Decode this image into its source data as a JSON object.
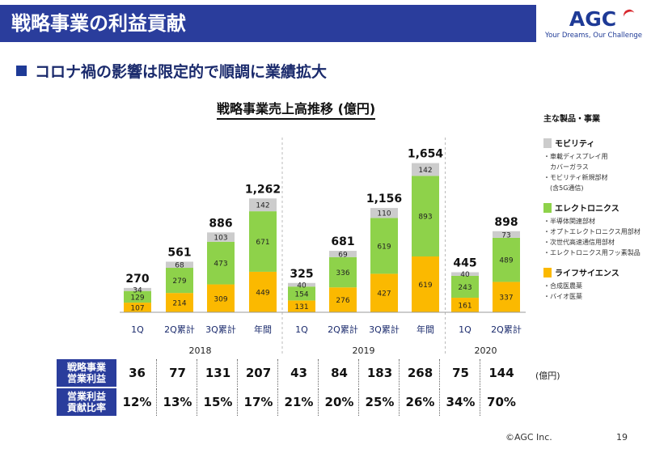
{
  "header": {
    "title": "戦略事業の利益貢献",
    "logo_text": "AGC",
    "logo_tagline": "Your Dreams, Our Challenge"
  },
  "subtitle": "コロナ禍の影響は限定的で順調に業績拡大",
  "chart_data": {
    "type": "bar",
    "stacked": true,
    "title": "戦略事業売上高推移 (億円)",
    "categories": [
      "1Q",
      "2Q累計",
      "3Q累計",
      "年間",
      "1Q",
      "2Q累計",
      "3Q累計",
      "年間",
      "1Q",
      "2Q累計"
    ],
    "year_groups": [
      {
        "label": "2018",
        "start": 0,
        "end": 3
      },
      {
        "label": "2019",
        "start": 4,
        "end": 7
      },
      {
        "label": "2020",
        "start": 8,
        "end": 9
      }
    ],
    "series": [
      {
        "name": "ライフサイエンス",
        "color": "#fbb900",
        "values": [
          107,
          214,
          309,
          449,
          131,
          276,
          427,
          619,
          161,
          337
        ]
      },
      {
        "name": "エレクトロニクス",
        "color": "#8ed24a",
        "values": [
          129,
          279,
          473,
          671,
          154,
          336,
          619,
          893,
          243,
          489
        ]
      },
      {
        "name": "モビリティ",
        "color": "#cccccc",
        "values": [
          34,
          68,
          103,
          142,
          40,
          69,
          110,
          142,
          40,
          73
        ]
      }
    ],
    "totals": [
      "270",
      "561",
      "886",
      "1,262",
      "325",
      "681",
      "1,156",
      "1,654",
      "445",
      "898"
    ],
    "ylim": [
      0,
      1800
    ]
  },
  "legend": {
    "heading": "主な製品・事業",
    "groups": [
      {
        "title": "モビリティ",
        "color": "#cccccc",
        "items": [
          "・車載ディスプレイ用",
          "　カバーガラス",
          "・モビリティ新規部材",
          "　(含5G通信)"
        ]
      },
      {
        "title": "エレクトロニクス",
        "color": "#8ed24a",
        "items": [
          "・半導体関連部材",
          "・オプトエレクトロニクス用部材",
          "・次世代高速通信用部材",
          "・エレクトロニクス用フッ素製品"
        ]
      },
      {
        "title": "ライフサイエンス",
        "color": "#fbb900",
        "items": [
          "・合成医農薬",
          "・バイオ医薬"
        ]
      }
    ]
  },
  "table": {
    "profit_label": [
      "戦略事業",
      "営業利益"
    ],
    "profit_values": [
      "36",
      "77",
      "131",
      "207",
      "43",
      "84",
      "183",
      "268",
      "75",
      "144"
    ],
    "unit": "(億円)",
    "ratio_label": [
      "営業利益",
      "貢献比率"
    ],
    "ratio_values": [
      "12%",
      "13%",
      "15%",
      "17%",
      "21%",
      "20%",
      "25%",
      "26%",
      "34%",
      "70%"
    ]
  },
  "footer": {
    "copyright": "©AGC Inc.",
    "page": "19"
  }
}
